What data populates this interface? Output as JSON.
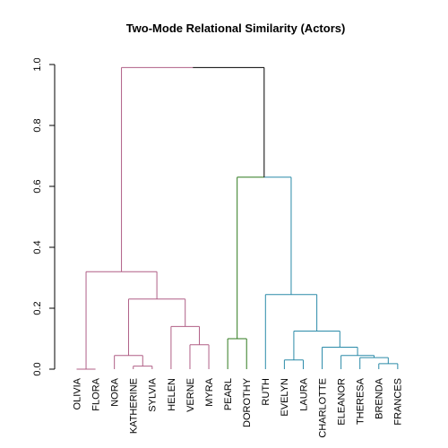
{
  "chart_data": {
    "type": "dendrogram",
    "title": "Two-Mode Relational Similarity (Actors)",
    "ylim": [
      0,
      1.0
    ],
    "y_ticks": [
      {
        "value": 0.0,
        "label": "0.0"
      },
      {
        "value": 0.2,
        "label": "0.2"
      },
      {
        "value": 0.4,
        "label": "0.4"
      },
      {
        "value": 0.6,
        "label": "0.6"
      },
      {
        "value": 0.8,
        "label": "0.8"
      },
      {
        "value": 1.0,
        "label": "1.0"
      }
    ],
    "leaves": [
      "OLIVIA",
      "FLORA",
      "NORA",
      "KATHERINE",
      "SYLVIA",
      "HELEN",
      "VERNE",
      "MYRA",
      "PEARL",
      "DOROTHY",
      "RUTH",
      "EVELYN",
      "LAURA",
      "CHARLOTTE",
      "ELEANOR",
      "THERESA",
      "BRENDA",
      "FRANCES"
    ],
    "colors": {
      "cluster_1": "#b05f86",
      "cluster_2": "#2f7a1e",
      "cluster_3": "#2a8aa8",
      "root": "#000000"
    },
    "merges": [
      {
        "id": "a",
        "children": [
          "OLIVIA",
          "FLORA"
        ],
        "height": 0.0,
        "color": "cluster_1"
      },
      {
        "id": "b",
        "children": [
          "KATHERINE",
          "SYLVIA"
        ],
        "height": 0.01,
        "color": "cluster_1"
      },
      {
        "id": "c",
        "children": [
          "NORA",
          "b"
        ],
        "height": 0.045,
        "color": "cluster_1"
      },
      {
        "id": "d",
        "children": [
          "VERNE",
          "MYRA"
        ],
        "height": 0.08,
        "color": "cluster_1"
      },
      {
        "id": "e",
        "children": [
          "HELEN",
          "d"
        ],
        "height": 0.14,
        "color": "cluster_1"
      },
      {
        "id": "f",
        "children": [
          "c",
          "e"
        ],
        "height": 0.23,
        "color": "cluster_1"
      },
      {
        "id": "g",
        "children": [
          "a",
          "f"
        ],
        "height": 0.32,
        "color": "cluster_1"
      },
      {
        "id": "h",
        "children": [
          "PEARL",
          "DOROTHY"
        ],
        "height": 0.1,
        "color": "cluster_2"
      },
      {
        "id": "i",
        "children": [
          "EVELYN",
          "LAURA"
        ],
        "height": 0.03,
        "color": "cluster_3"
      },
      {
        "id": "j",
        "children": [
          "BRENDA",
          "FRANCES"
        ],
        "height": 0.018,
        "color": "cluster_3"
      },
      {
        "id": "k",
        "children": [
          "THERESA",
          "j"
        ],
        "height": 0.038,
        "color": "cluster_3"
      },
      {
        "id": "l",
        "children": [
          "ELEANOR",
          "k"
        ],
        "height": 0.045,
        "color": "cluster_3"
      },
      {
        "id": "m",
        "children": [
          "CHARLOTTE",
          "l"
        ],
        "height": 0.072,
        "color": "cluster_3"
      },
      {
        "id": "n",
        "children": [
          "i",
          "m"
        ],
        "height": 0.125,
        "color": "cluster_3"
      },
      {
        "id": "o",
        "children": [
          "RUTH",
          "n"
        ],
        "height": 0.245,
        "color": "cluster_3"
      },
      {
        "id": "p",
        "children": [
          "h",
          "o"
        ],
        "height": 0.63,
        "color": "cluster_2",
        "right_color": "cluster_3"
      },
      {
        "id": "q",
        "children": [
          "g",
          "p"
        ],
        "height": 0.99,
        "color": "root",
        "left_color": "cluster_1"
      }
    ]
  }
}
